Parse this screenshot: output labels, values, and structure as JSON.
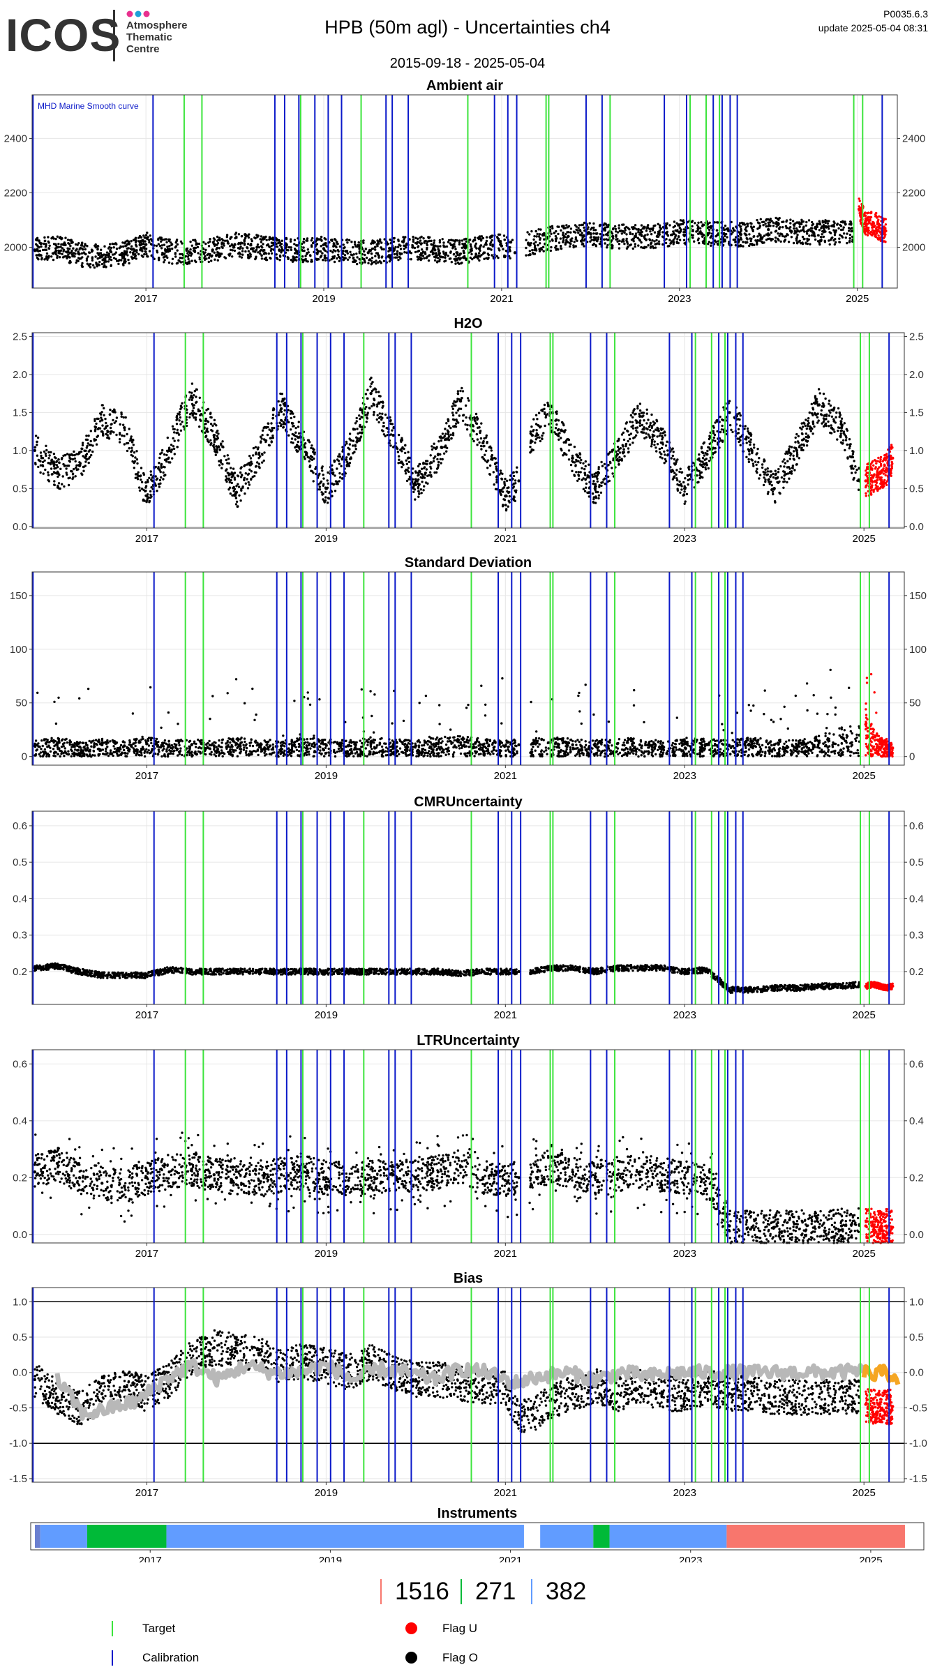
{
  "header": {
    "logo_text": "ICOS",
    "logo_subtitle": "Atmosphere\nThematic\nCentre",
    "title": "HPB  (50m agl) - Uncertainties ch4",
    "date_range": "2015-09-18 - 2025-05-04",
    "version": "P0035.6.3",
    "update": "update  2025-05-04 08:31"
  },
  "colors": {
    "calibration": "#0b19c9",
    "target": "#3ce43c",
    "flag_u": "#ff0000",
    "flag_o": "#000000",
    "smooth_curve": "#b8b8b8",
    "smooth_curve_recent": "#f5a623",
    "instrument_blue": "#619cff",
    "instrument_green": "#00ba38",
    "instrument_red": "#f8766d",
    "logo_dots": [
      "#e8308e",
      "#1da1d8",
      "#e8308e"
    ]
  },
  "markers": {
    "calibration_dates": [
      2015.73,
      2017.08,
      2018.45,
      2018.56,
      2018.72,
      2018.9,
      2019.05,
      2019.2,
      2019.7,
      2019.77,
      2019.95,
      2020.92,
      2021.07,
      2021.17,
      2021.95,
      2022.13,
      2022.83,
      2023.08,
      2023.38,
      2023.48,
      2023.57,
      2023.65,
      2025.28
    ],
    "target_dates": [
      2017.43,
      2017.63,
      2018.74,
      2019.42,
      2020.62,
      2021.5,
      2021.53,
      2022.22,
      2023.12,
      2023.3,
      2023.45,
      2024.96,
      2025.06
    ]
  },
  "chart_data": [
    {
      "name": "ambient-air",
      "type": "scatter",
      "title": "Ambient air",
      "annotation": "MHD Marine Smooth curve",
      "xlim": [
        2015.72,
        2025.45
      ],
      "ylim": [
        1850,
        2560
      ],
      "y_ticks": [
        2000,
        2200,
        2400
      ],
      "x_ticks": [
        2017,
        2019,
        2021,
        2023,
        2025
      ],
      "series": [
        {
          "name": "Flag O",
          "color": "#000000",
          "x": [
            2015.75,
            2016.0,
            2016.25,
            2016.5,
            2016.75,
            2017.0,
            2017.25,
            2017.5,
            2017.75,
            2018.0,
            2018.25,
            2018.5,
            2018.75,
            2019.0,
            2019.25,
            2019.5,
            2019.75,
            2020.0,
            2020.25,
            2020.5,
            2020.75,
            2021.0,
            2021.15,
            2021.3,
            2021.5,
            2021.75,
            2022.0,
            2022.25,
            2022.5,
            2022.75,
            2023.0,
            2023.25,
            2023.5,
            2023.75,
            2024.0,
            2024.25,
            2024.5,
            2024.75,
            2024.95
          ],
          "y": [
            1990,
            2000,
            1975,
            1965,
            1975,
            2010,
            1985,
            1980,
            1990,
            2010,
            2000,
            1990,
            1990,
            1995,
            1985,
            1980,
            1990,
            2000,
            1990,
            1980,
            1995,
            2005,
            1980,
            2015,
            2030,
            2040,
            2050,
            2040,
            2040,
            2040,
            2055,
            2050,
            2050,
            2045,
            2065,
            2060,
            2055,
            2055,
            2060
          ]
        },
        {
          "name": "Flag U",
          "color": "#ff0000",
          "x": [
            2025.02,
            2025.1,
            2025.18,
            2025.25,
            2025.32
          ],
          "y": [
            2140,
            2080,
            2090,
            2070,
            2060
          ]
        }
      ]
    },
    {
      "name": "h2o",
      "type": "scatter",
      "title": "H2O",
      "xlim": [
        2015.72,
        2025.45
      ],
      "ylim": [
        -0.02,
        2.55
      ],
      "y_ticks": [
        0.0,
        0.5,
        1.0,
        1.5,
        2.0,
        2.5
      ],
      "x_ticks": [
        2017,
        2019,
        2021,
        2023,
        2025
      ],
      "series": [
        {
          "name": "Flag O",
          "color": "#000000",
          "x": [
            2015.75,
            2016.0,
            2016.25,
            2016.5,
            2016.75,
            2017.0,
            2017.25,
            2017.5,
            2017.75,
            2018.0,
            2018.25,
            2018.5,
            2018.75,
            2019.0,
            2019.25,
            2019.5,
            2019.75,
            2020.0,
            2020.25,
            2020.5,
            2020.75,
            2021.0,
            2021.15,
            2021.3,
            2021.5,
            2021.75,
            2022.0,
            2022.25,
            2022.5,
            2022.75,
            2023.0,
            2023.25,
            2023.5,
            2023.75,
            2024.0,
            2024.25,
            2024.5,
            2024.75,
            2024.95
          ],
          "y": [
            1.0,
            0.7,
            0.8,
            1.4,
            1.3,
            0.4,
            1.0,
            1.7,
            1.2,
            0.45,
            0.95,
            1.55,
            1.05,
            0.5,
            0.95,
            1.75,
            1.2,
            0.55,
            0.95,
            1.65,
            1.1,
            0.4,
            0.6,
            1.2,
            1.5,
            0.9,
            0.5,
            0.95,
            1.45,
            1.1,
            0.5,
            0.95,
            1.5,
            1.0,
            0.5,
            1.0,
            1.6,
            1.3,
            0.6
          ]
        },
        {
          "name": "Flag U",
          "color": "#ff0000",
          "x": [
            2025.02,
            2025.1,
            2025.18,
            2025.25,
            2025.32
          ],
          "y": [
            0.6,
            0.65,
            0.7,
            0.75,
            0.9
          ]
        }
      ]
    },
    {
      "name": "standard-deviation",
      "type": "scatter",
      "title": "Standard Deviation",
      "xlim": [
        2015.72,
        2025.45
      ],
      "ylim": [
        -8,
        172
      ],
      "y_ticks": [
        0,
        50,
        100,
        150
      ],
      "x_ticks": [
        2017,
        2019,
        2021,
        2023,
        2025
      ],
      "series": [
        {
          "name": "Flag O",
          "color": "#000000",
          "x": [
            2015.75,
            2016.0,
            2016.25,
            2016.5,
            2016.75,
            2017.0,
            2017.25,
            2017.5,
            2017.75,
            2018.0,
            2018.25,
            2018.5,
            2018.75,
            2019.0,
            2019.25,
            2019.5,
            2019.75,
            2020.0,
            2020.25,
            2020.5,
            2020.75,
            2021.0,
            2021.15,
            2021.3,
            2021.5,
            2021.75,
            2022.0,
            2022.25,
            2022.5,
            2022.75,
            2023.0,
            2023.25,
            2023.5,
            2023.75,
            2024.0,
            2024.25,
            2024.5,
            2024.75,
            2024.95
          ],
          "y": [
            10,
            12,
            9,
            11,
            10,
            12,
            10,
            11,
            10,
            12,
            11,
            10,
            12,
            11,
            10,
            12,
            11,
            10,
            12,
            13,
            11,
            10,
            11,
            12,
            13,
            11,
            10,
            12,
            11,
            10,
            12,
            11,
            10,
            12,
            11,
            10,
            13,
            18,
            20
          ]
        },
        {
          "name": "Flag U",
          "color": "#ff0000",
          "x": [
            2025.02,
            2025.1,
            2025.18,
            2025.25,
            2025.32
          ],
          "y": [
            30,
            18,
            12,
            10,
            8
          ]
        }
      ]
    },
    {
      "name": "cmr-uncertainty",
      "type": "scatter",
      "title": "CMRUncertainty",
      "xlim": [
        2015.72,
        2025.45
      ],
      "ylim": [
        0.11,
        0.64
      ],
      "y_ticks": [
        0.2,
        0.3,
        0.4,
        0.5,
        0.6
      ],
      "x_ticks": [
        2017,
        2019,
        2021,
        2023,
        2025
      ],
      "series": [
        {
          "name": "Flag O",
          "color": "#000000",
          "x": [
            2015.75,
            2016.0,
            2016.25,
            2016.5,
            2016.75,
            2017.0,
            2017.25,
            2017.5,
            2017.75,
            2018.0,
            2018.25,
            2018.5,
            2018.75,
            2019.0,
            2019.25,
            2019.5,
            2019.75,
            2020.0,
            2020.25,
            2020.5,
            2020.75,
            2021.0,
            2021.15,
            2021.3,
            2021.5,
            2021.75,
            2022.0,
            2022.25,
            2022.5,
            2022.75,
            2023.0,
            2023.25,
            2023.5,
            2023.75,
            2024.0,
            2024.25,
            2024.5,
            2024.75,
            2024.95
          ],
          "y": [
            0.21,
            0.215,
            0.2,
            0.19,
            0.19,
            0.19,
            0.205,
            0.2,
            0.2,
            0.2,
            0.2,
            0.2,
            0.2,
            0.2,
            0.2,
            0.2,
            0.2,
            0.2,
            0.2,
            0.195,
            0.2,
            0.2,
            0.2,
            0.2,
            0.21,
            0.21,
            0.2,
            0.21,
            0.21,
            0.21,
            0.2,
            0.205,
            0.15,
            0.15,
            0.155,
            0.155,
            0.16,
            0.16,
            0.165
          ]
        },
        {
          "name": "Flag U",
          "color": "#ff0000",
          "x": [
            2025.02,
            2025.1,
            2025.18,
            2025.25,
            2025.32
          ],
          "y": [
            0.16,
            0.165,
            0.16,
            0.155,
            0.16
          ]
        }
      ]
    },
    {
      "name": "ltr-uncertainty",
      "type": "scatter",
      "title": "LTRUncertainty",
      "xlim": [
        2015.72,
        2025.45
      ],
      "ylim": [
        -0.03,
        0.65
      ],
      "y_ticks": [
        0.0,
        0.2,
        0.4,
        0.6
      ],
      "x_ticks": [
        2017,
        2019,
        2021,
        2023,
        2025
      ],
      "series": [
        {
          "name": "Flag O",
          "color": "#000000",
          "x": [
            2015.75,
            2016.0,
            2016.25,
            2016.5,
            2016.75,
            2017.0,
            2017.25,
            2017.5,
            2017.75,
            2018.0,
            2018.25,
            2018.5,
            2018.75,
            2019.0,
            2019.25,
            2019.5,
            2019.75,
            2020.0,
            2020.25,
            2020.5,
            2020.75,
            2021.0,
            2021.15,
            2021.3,
            2021.5,
            2021.75,
            2022.0,
            2022.25,
            2022.5,
            2022.75,
            2023.0,
            2023.25,
            2023.5,
            2023.75,
            2024.0,
            2024.25,
            2024.5,
            2024.75,
            2024.95
          ],
          "y": [
            0.22,
            0.25,
            0.2,
            0.18,
            0.17,
            0.2,
            0.22,
            0.23,
            0.21,
            0.2,
            0.19,
            0.21,
            0.22,
            0.2,
            0.19,
            0.2,
            0.21,
            0.2,
            0.22,
            0.24,
            0.2,
            0.19,
            0.2,
            0.22,
            0.24,
            0.22,
            0.2,
            0.21,
            0.22,
            0.21,
            0.2,
            0.2,
            0.03,
            0.025,
            0.025,
            0.025,
            0.025,
            0.03,
            0.035
          ]
        },
        {
          "name": "Flag U",
          "color": "#ff0000",
          "x": [
            2025.02,
            2025.1,
            2025.18,
            2025.25,
            2025.32
          ],
          "y": [
            0.03,
            0.03,
            0.025,
            0.03,
            0.025
          ]
        }
      ]
    },
    {
      "name": "bias",
      "type": "scatter",
      "title": "Bias",
      "xlim": [
        2015.72,
        2025.45
      ],
      "ylim": [
        -1.55,
        1.2
      ],
      "y_ticks": [
        -1.5,
        -1.0,
        -0.5,
        0.0,
        0.5,
        1.0
      ],
      "x_ticks": [
        2017,
        2019,
        2021,
        2023,
        2025
      ],
      "hlines": [
        1.0,
        -1.0
      ],
      "series": [
        {
          "name": "Flag O",
          "color": "#000000",
          "x": [
            2015.75,
            2016.0,
            2016.25,
            2016.5,
            2016.75,
            2017.0,
            2017.25,
            2017.5,
            2017.75,
            2018.0,
            2018.25,
            2018.5,
            2018.75,
            2019.0,
            2019.25,
            2019.5,
            2019.75,
            2020.0,
            2020.25,
            2020.5,
            2020.75,
            2021.0,
            2021.15,
            2021.3,
            2021.5,
            2021.75,
            2022.0,
            2022.25,
            2022.5,
            2022.75,
            2023.0,
            2023.25,
            2023.5,
            2023.75,
            2024.0,
            2024.25,
            2024.5,
            2024.75,
            2024.95
          ],
          "y": [
            -0.1,
            -0.35,
            -0.5,
            -0.3,
            -0.2,
            -0.3,
            -0.1,
            0.2,
            0.35,
            0.3,
            0.25,
            0.1,
            0.15,
            0.1,
            0.0,
            0.15,
            0.0,
            -0.1,
            -0.1,
            -0.15,
            -0.2,
            -0.2,
            -0.6,
            -0.6,
            -0.4,
            -0.3,
            -0.2,
            -0.3,
            -0.2,
            -0.3,
            -0.3,
            -0.2,
            -0.3,
            -0.3,
            -0.35,
            -0.35,
            -0.35,
            -0.35,
            -0.35
          ]
        },
        {
          "name": "Flag U",
          "color": "#ff0000",
          "x": [
            2025.02,
            2025.1,
            2025.18,
            2025.25,
            2025.32
          ],
          "y": [
            -0.45,
            -0.5,
            -0.45,
            -0.5,
            -0.48
          ]
        },
        {
          "name": "Smooth curve",
          "color": "#b8b8b8",
          "x": [
            2016.0,
            2016.3,
            2016.6,
            2016.9,
            2017.2,
            2017.5,
            2017.8,
            2018.1,
            2018.4,
            2018.7,
            2019.0,
            2019.3,
            2019.6,
            2019.9,
            2020.2,
            2020.5,
            2020.8,
            2021.1,
            2021.4,
            2021.7,
            2022.0,
            2022.3,
            2022.6,
            2022.9,
            2023.2,
            2023.5,
            2023.8,
            2024.1,
            2024.4,
            2024.7,
            2025.0
          ],
          "y": [
            -0.1,
            -0.6,
            -0.5,
            -0.4,
            -0.1,
            0.1,
            -0.1,
            0.1,
            0.0,
            0.0,
            0.1,
            -0.1,
            0.05,
            0.0,
            -0.1,
            0.05,
            0.0,
            -0.15,
            -0.05,
            0.0,
            -0.1,
            0.0,
            -0.05,
            0.0,
            0.0,
            0.0,
            0.0,
            0.0,
            0.0,
            0.0,
            0.02
          ]
        },
        {
          "name": "Smooth curve (recent)",
          "color": "#f5a623",
          "x": [
            2025.0,
            2025.1,
            2025.2,
            2025.3,
            2025.38
          ],
          "y": [
            0.02,
            -0.05,
            0.0,
            -0.03,
            -0.08
          ]
        }
      ]
    },
    {
      "name": "instruments",
      "type": "timeline",
      "title": "Instruments",
      "xlim": [
        2015.72,
        2025.45
      ],
      "x_ticks": [
        2017,
        2019,
        2021,
        2023,
        2025
      ],
      "segments": [
        {
          "start": 2015.72,
          "end": 2015.78,
          "color": "#6a7fd0"
        },
        {
          "start": 2015.78,
          "end": 2016.3,
          "color": "#619cff"
        },
        {
          "start": 2016.3,
          "end": 2017.18,
          "color": "#00ba38"
        },
        {
          "start": 2017.18,
          "end": 2021.15,
          "color": "#619cff"
        },
        {
          "start": 2021.33,
          "end": 2021.92,
          "color": "#619cff"
        },
        {
          "start": 2021.92,
          "end": 2022.1,
          "color": "#00ba38"
        },
        {
          "start": 2022.1,
          "end": 2023.4,
          "color": "#619cff"
        },
        {
          "start": 2023.4,
          "end": 2025.38,
          "color": "#f8766d"
        }
      ]
    }
  ],
  "counts": [
    {
      "value": "1516",
      "color": "#f8766d"
    },
    {
      "value": "271",
      "color": "#00ba38"
    },
    {
      "value": "382",
      "color": "#619cff"
    }
  ],
  "legend": {
    "target_label": "Target",
    "calibration_label": "Calibration",
    "flag_u_label": "Flag U",
    "flag_o_label": "Flag O"
  }
}
